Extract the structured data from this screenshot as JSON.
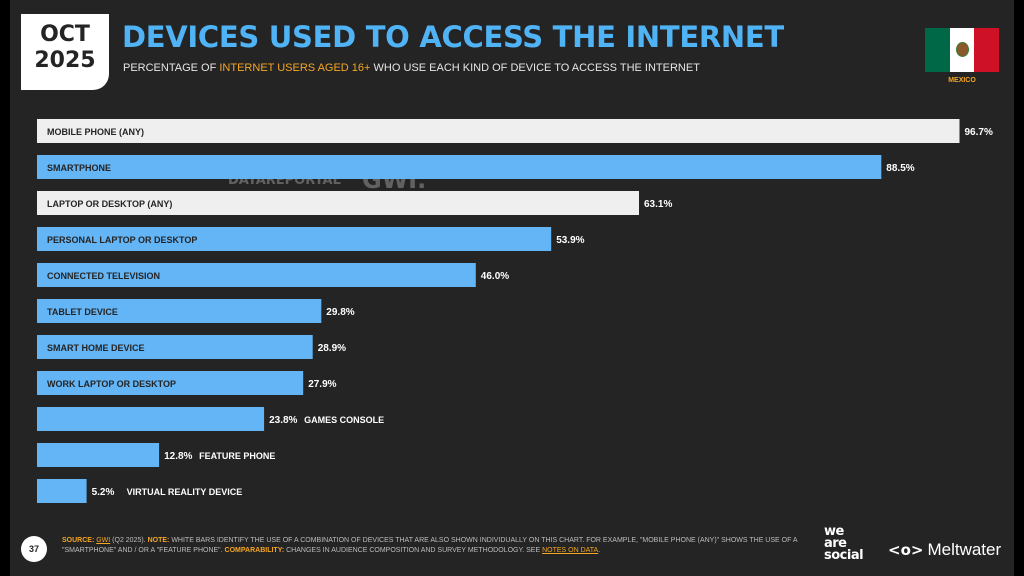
{
  "header": {
    "date_line1": "OCT",
    "date_line2": "2025",
    "title": "DEVICES USED TO ACCESS THE INTERNET",
    "subtitle_pre": "PERCENTAGE OF ",
    "subtitle_highlight": "INTERNET USERS AGED 16+",
    "subtitle_post": " WHO USE EACH KIND OF DEVICE TO ACCESS THE INTERNET",
    "country": "MEXICO",
    "flag_icon": "mexico-flag-icon"
  },
  "chart_data": {
    "type": "bar",
    "orientation": "horizontal",
    "categories": [
      "MOBILE PHONE (ANY)",
      "SMARTPHONE",
      "LAPTOP OR DESKTOP (ANY)",
      "PERSONAL LAPTOP OR DESKTOP",
      "CONNECTED TELEVISION",
      "TABLET DEVICE",
      "SMART HOME DEVICE",
      "WORK LAPTOP OR DESKTOP",
      "GAMES CONSOLE",
      "FEATURE PHONE",
      "VIRTUAL REALITY DEVICE"
    ],
    "values": [
      96.7,
      88.5,
      63.1,
      53.9,
      46.0,
      29.8,
      28.9,
      27.9,
      23.8,
      12.8,
      5.2
    ],
    "value_labels": [
      "96.7%",
      "88.5%",
      "63.1%",
      "53.9%",
      "46.0%",
      "29.8%",
      "28.9%",
      "27.9%",
      "23.8%",
      "12.8%",
      "5.2%"
    ],
    "combined": [
      true,
      false,
      true,
      false,
      false,
      false,
      false,
      false,
      false,
      false,
      false
    ],
    "xlim": [
      0,
      100
    ],
    "colors": {
      "individual": "#64b5f6",
      "combined": "#efefef",
      "label_dark": "#242424",
      "value_text": "#ffffff"
    }
  },
  "watermark": {
    "text1": "DATAREPORTAL",
    "text2": "GWI."
  },
  "footer": {
    "page_number": "37",
    "source_label": "SOURCE:",
    "source_text": "GWI",
    "source_rest": " (Q2 2025). ",
    "note_label": "NOTE:",
    "note_text": " WHITE BARS IDENTIFY THE USE OF A COMBINATION OF DEVICES THAT ARE ALSO SHOWN INDIVIDUALLY ON THIS CHART. FOR EXAMPLE, \"MOBILE PHONE (ANY)\" SHOWS THE USE OF A \"SMARTPHONE\" AND / OR A \"FEATURE PHONE\". ",
    "comparability_label": "COMPARABILITY:",
    "comparability_text": " CHANGES IN AUDIENCE COMPOSITION AND SURVEY METHODOLOGY. SEE ",
    "notes_link": "NOTES ON DATA",
    "end": ".",
    "logo_we": "we",
    "logo_are": "are",
    "logo_social": "social",
    "logo_mw_mark": "<o>",
    "logo_mw_name": "Meltwater"
  }
}
